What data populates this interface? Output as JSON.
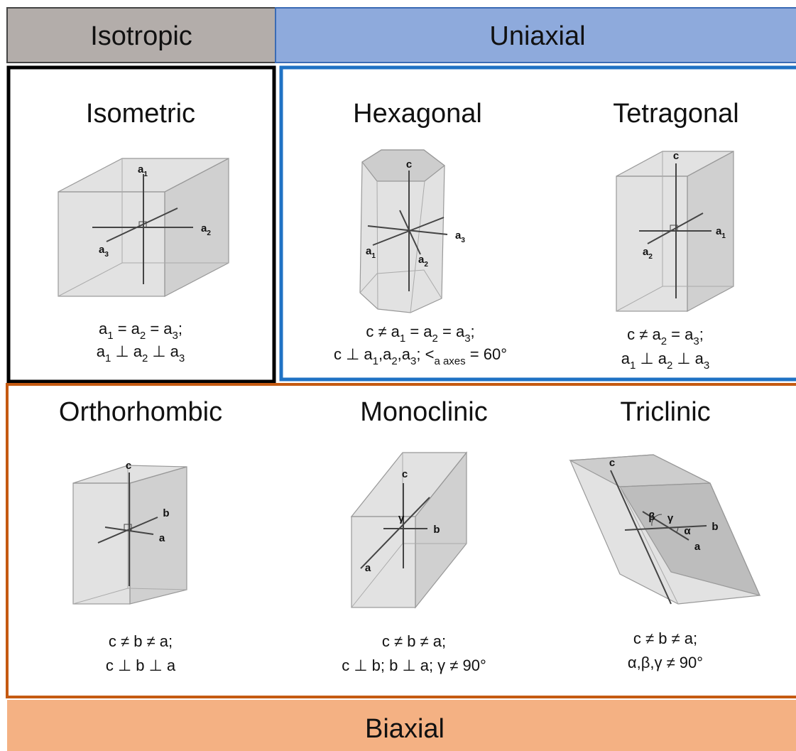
{
  "header": {
    "isotropic": "Isotropic",
    "uniaxial": "Uniaxial"
  },
  "systems": [
    {
      "name": "Isometric",
      "labels": [
        [
          "a",
          "1"
        ],
        [
          "a",
          "2"
        ],
        [
          "a",
          "3"
        ]
      ],
      "formula": [
        [
          "a",
          "1",
          " = a",
          "2",
          " = a",
          "3",
          ";"
        ],
        [
          "a",
          "1",
          " ⊥ a",
          "2",
          " ⊥ a",
          "3"
        ]
      ]
    },
    {
      "name": "Hexagonal",
      "labels": [
        [
          "c"
        ],
        [
          "a",
          "3"
        ],
        [
          "a",
          "1"
        ],
        [
          "a",
          "2"
        ]
      ],
      "formula": [
        [
          "c ≠ a",
          "1",
          " = a",
          "2",
          " = a",
          "3",
          ";"
        ],
        [
          "c ⊥ a",
          "1",
          ",a",
          "2",
          ",a",
          "3",
          "; <",
          "a axes",
          " = 60°"
        ]
      ]
    },
    {
      "name": "Tetragonal",
      "labels": [
        [
          "c"
        ],
        [
          "a",
          "1"
        ],
        [
          "a",
          "2"
        ]
      ],
      "formula": [
        [
          "c ≠ a",
          "2",
          " = a",
          "3",
          ";"
        ],
        [
          "a",
          "1",
          " ⊥ a",
          "2",
          " ⊥ a",
          "3"
        ]
      ]
    },
    {
      "name": "Orthorhombic",
      "labels": [
        [
          "c"
        ],
        [
          "b"
        ],
        [
          "a"
        ]
      ],
      "formula": [
        [
          "c ≠ b ≠ a;"
        ],
        [
          "c ⊥ b ⊥ a"
        ]
      ]
    },
    {
      "name": "Monoclinic",
      "labels": [
        [
          "c"
        ],
        [
          "γ"
        ],
        [
          "b"
        ],
        [
          "a"
        ]
      ],
      "formula": [
        [
          "c ≠ b ≠ a;"
        ],
        [
          "c ⊥ b; b ⊥ a;  γ ≠ 90°"
        ]
      ]
    },
    {
      "name": "Triclinic",
      "labels": [
        [
          "c"
        ],
        [
          "β"
        ],
        [
          "γ"
        ],
        [
          "b"
        ],
        [
          "α"
        ],
        [
          "a"
        ]
      ],
      "formula": [
        [
          "c ≠ b ≠ a;"
        ],
        [
          "α,β,γ ≠ 90°"
        ]
      ]
    }
  ],
  "footer": "Biaxial"
}
